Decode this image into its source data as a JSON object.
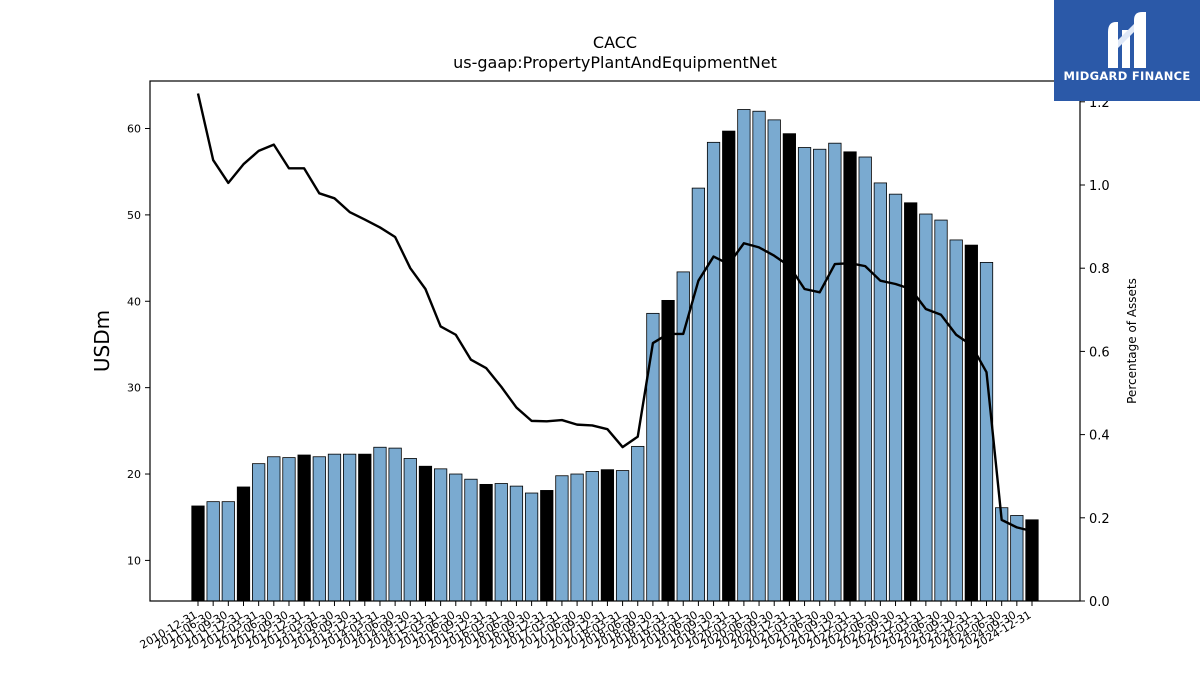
{
  "brand": {
    "name": "MIDGARD FINANCE",
    "logo_icon": "midgard-m-icon",
    "background_color": "#2b59a8"
  },
  "chart_data": {
    "type": "bar",
    "title": "CACC",
    "subtitle": "us-gaap:PropertyPlantAndEquipmentNet",
    "ylabel": "USDm",
    "y2label": "Percentage of Assets",
    "ylim": [
      5.3,
      65.5
    ],
    "y2lim": [
      0.0,
      1.25
    ],
    "yticks": [
      10,
      20,
      30,
      40,
      50,
      60
    ],
    "y2ticks": [
      0.0,
      0.2,
      0.4,
      0.6,
      0.8,
      1.0,
      1.2
    ],
    "grid": false,
    "bar_color": "#7aaad0",
    "highlight_color": "#000000",
    "line_color": "#000000",
    "categories": [
      "2010-12-31",
      "2011-06-30",
      "2011-09-30",
      "2011-12-31",
      "2012-03-31",
      "2012-06-30",
      "2012-09-30",
      "2012-12-31",
      "2013-03-31",
      "2013-06-30",
      "2013-09-30",
      "2013-12-31",
      "2014-03-31",
      "2014-06-30",
      "2014-09-30",
      "2014-12-31",
      "2015-03-31",
      "2015-06-30",
      "2015-09-30",
      "2015-12-31",
      "2016-03-31",
      "2016-06-30",
      "2016-09-30",
      "2016-12-31",
      "2017-03-31",
      "2017-06-30",
      "2017-09-30",
      "2017-12-31",
      "2018-03-31",
      "2018-06-30",
      "2018-09-30",
      "2018-12-31",
      "2019-03-31",
      "2019-06-30",
      "2019-09-30",
      "2019-12-31",
      "2020-03-31",
      "2020-06-30",
      "2020-09-30",
      "2020-12-31",
      "2021-03-31",
      "2021-06-30",
      "2021-09-30",
      "2021-12-31",
      "2022-03-31",
      "2022-06-30",
      "2022-09-30",
      "2022-12-31",
      "2023-03-31",
      "2023-06-30",
      "2023-09-30",
      "2023-12-31",
      "2024-03-31",
      "2024-06-30",
      "2024-09-30",
      "2024-12-31"
    ],
    "series": [
      {
        "type": "bar",
        "values": [
          16.3,
          16.8,
          16.8,
          18.5,
          21.2,
          22.0,
          21.9,
          22.2,
          22.0,
          22.3,
          22.3,
          22.3,
          23.1,
          23.0,
          21.8,
          20.9,
          20.6,
          20.0,
          19.4,
          18.8,
          18.9,
          18.6,
          17.8,
          18.1,
          19.8,
          20.0,
          20.3,
          20.5,
          20.4,
          23.2,
          38.6,
          40.1,
          43.4,
          53.1,
          58.4,
          59.7,
          62.2,
          62.0,
          61.0,
          59.4,
          57.8,
          57.6,
          58.3,
          57.3,
          56.7,
          53.7,
          52.4,
          51.4,
          50.1,
          49.4,
          47.1,
          46.5,
          44.5,
          16.1,
          15.2,
          14.7
        ],
        "highlight": [
          true,
          false,
          false,
          true,
          false,
          false,
          false,
          true,
          false,
          false,
          false,
          true,
          false,
          false,
          false,
          true,
          false,
          false,
          false,
          true,
          false,
          false,
          false,
          true,
          false,
          false,
          false,
          true,
          false,
          false,
          false,
          true,
          false,
          false,
          false,
          true,
          false,
          false,
          false,
          true,
          false,
          false,
          false,
          true,
          false,
          false,
          false,
          true,
          false,
          false,
          false,
          true,
          false,
          false,
          false,
          true
        ]
      },
      {
        "type": "line",
        "axis": "right",
        "values": [
          1.22,
          1.06,
          1.005,
          1.05,
          1.082,
          1.097,
          1.04,
          1.04,
          0.98,
          0.968,
          0.935,
          0.917,
          0.898,
          0.875,
          0.8,
          0.75,
          0.66,
          0.64,
          0.58,
          0.56,
          0.515,
          0.465,
          0.433,
          0.432,
          0.435,
          0.424,
          0.422,
          0.413,
          0.37,
          0.395,
          0.62,
          0.642,
          0.642,
          0.77,
          0.828,
          0.81,
          0.86,
          0.85,
          0.83,
          0.805,
          0.75,
          0.742,
          0.81,
          0.812,
          0.805,
          0.77,
          0.762,
          0.75,
          0.702,
          0.688,
          0.64,
          0.615,
          0.55,
          0.195,
          0.177,
          0.168
        ]
      }
    ]
  }
}
